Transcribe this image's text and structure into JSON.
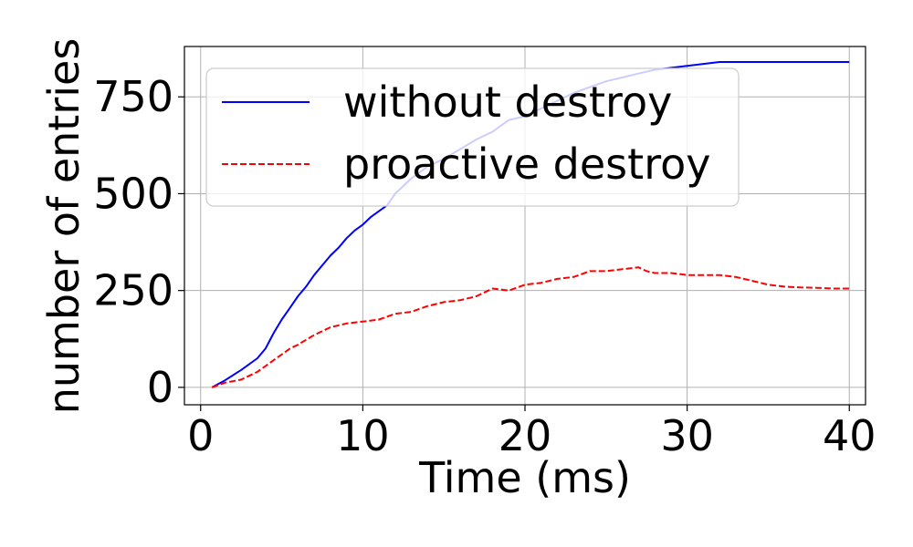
{
  "chart_data": {
    "type": "line",
    "title": "",
    "xlabel": "Time (ms)",
    "ylabel": "number of entries",
    "xlim": [
      -1.0,
      41.0
    ],
    "ylim": [
      -45,
      880
    ],
    "xticks": [
      0,
      10,
      20,
      30,
      40
    ],
    "xtick_labels": [
      "0",
      "10",
      "20",
      "30",
      "40"
    ],
    "yticks": [
      0,
      250,
      500,
      750
    ],
    "ytick_labels": [
      "0",
      "250",
      "500",
      "750"
    ],
    "grid": true,
    "legend_position": "upper-left",
    "series": [
      {
        "name": "without destroy",
        "color": "#0000ff",
        "style": "solid",
        "x": [
          0.7,
          1.5,
          2.5,
          3.5,
          4.0,
          4.5,
          5.0,
          5.5,
          6.0,
          6.5,
          7.0,
          7.5,
          8.0,
          8.5,
          9.0,
          9.5,
          10.0,
          10.5,
          11.0,
          11.5,
          12.0,
          13.0,
          14.0,
          15.0,
          16.0,
          17.0,
          18.0,
          19.0,
          20.0,
          21.0,
          22.0,
          23.0,
          24.0,
          25.0,
          26.0,
          27.0,
          28.0,
          29.0,
          30.0,
          31.0,
          32.0,
          33.0,
          35.0,
          37.0,
          39.0,
          40.0
        ],
        "y": [
          0,
          18,
          45,
          75,
          100,
          140,
          175,
          205,
          235,
          260,
          290,
          315,
          340,
          360,
          385,
          405,
          420,
          440,
          455,
          470,
          500,
          540,
          570,
          590,
          615,
          640,
          660,
          690,
          700,
          720,
          740,
          760,
          775,
          790,
          800,
          810,
          820,
          825,
          830,
          835,
          840,
          840,
          840,
          840,
          840,
          840
        ]
      },
      {
        "name": "proactive destroy",
        "color": "#ff0000",
        "style": "dashed",
        "x": [
          0.7,
          1.5,
          2.5,
          3.5,
          4.0,
          4.5,
          5.0,
          5.5,
          6.0,
          7.0,
          8.0,
          9.0,
          10.0,
          11.0,
          12.0,
          13.0,
          14.0,
          15.0,
          16.0,
          17.0,
          18.0,
          19.0,
          20.0,
          21.0,
          22.0,
          23.0,
          24.0,
          25.0,
          26.0,
          27.0,
          27.5,
          28.0,
          29.0,
          30.0,
          31.0,
          32.0,
          33.0,
          34.0,
          35.0,
          36.0,
          37.0,
          38.0,
          39.0,
          40.0
        ],
        "y": [
          0,
          12,
          20,
          40,
          55,
          70,
          85,
          100,
          110,
          135,
          155,
          165,
          170,
          175,
          190,
          195,
          210,
          220,
          225,
          235,
          255,
          250,
          265,
          270,
          280,
          285,
          300,
          300,
          305,
          310,
          300,
          295,
          295,
          290,
          290,
          290,
          285,
          275,
          265,
          260,
          258,
          257,
          255,
          255
        ]
      }
    ]
  }
}
